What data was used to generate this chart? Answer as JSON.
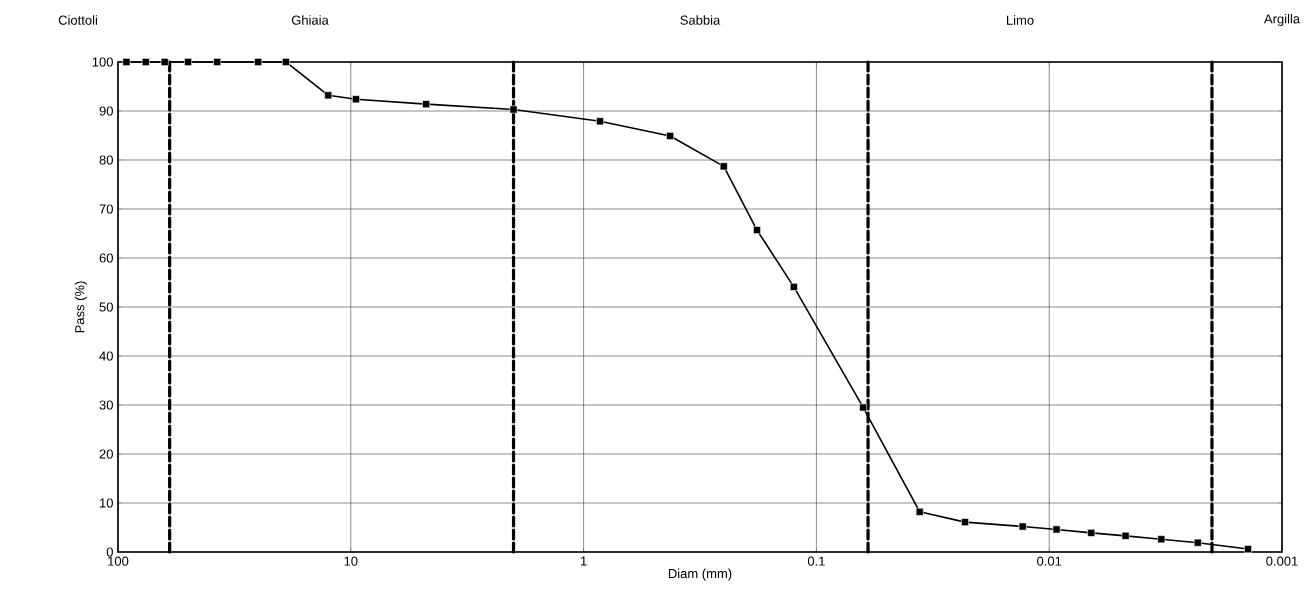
{
  "chart_data": {
    "type": "line",
    "xlabel": "Diam (mm)",
    "ylabel": "Pass (%)",
    "annotations": [
      "Ciottoli",
      "Ghiaia",
      "Sabbia",
      "Limo",
      "Argilla"
    ],
    "log": "x",
    "grid": true,
    "marker": "square",
    "line_style": "solid",
    "xlim": [
      100,
      0.001
    ],
    "ylim": [
      0,
      100
    ],
    "xticks": [
      100,
      10,
      1,
      0.1,
      0.01,
      0.001
    ],
    "yticks": [
      0,
      10,
      20,
      30,
      40,
      50,
      60,
      70,
      80,
      90,
      100
    ],
    "ref_lines": [
      {
        "axis": "x",
        "value": 60,
        "color": "#000000",
        "line_style": "dashed"
      },
      {
        "axis": "x",
        "value": 2,
        "color": "#000000",
        "line_style": "dashed"
      },
      {
        "axis": "x",
        "value": 0.06,
        "color": "#000000",
        "line_style": "dashed"
      },
      {
        "axis": "x",
        "value": 0.002,
        "color": "#000000",
        "line_style": "dashed"
      }
    ],
    "x": [
      92,
      76,
      63,
      50,
      37.5,
      25,
      19,
      12.5,
      9.5,
      4.75,
      2,
      0.85,
      0.425,
      0.25,
      0.18,
      0.125,
      0.063,
      0.036,
      0.023,
      0.013,
      0.0093,
      0.0066,
      0.0047,
      0.0033,
      0.0023,
      0.0014
    ],
    "series": [
      {
        "color": "#000000",
        "values": [
          100,
          100,
          100,
          100,
          100,
          100,
          100,
          93.2,
          92.4,
          91.4,
          90.3,
          87.9,
          84.9,
          78.7,
          65.7,
          54.1,
          29.5,
          8.2,
          6.1,
          5.2,
          4.6,
          3.9,
          3.3,
          2.6,
          1.9,
          0.6
        ]
      }
    ]
  }
}
